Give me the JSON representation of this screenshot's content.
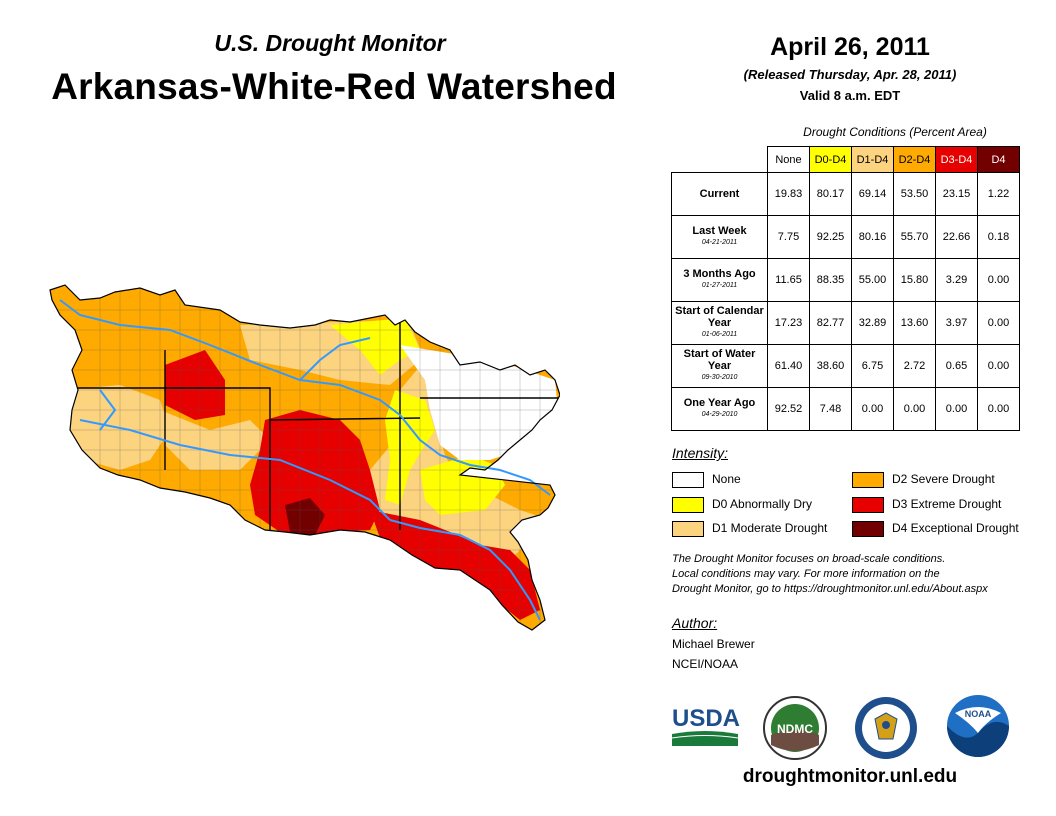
{
  "header": {
    "subtitle": "U.S. Drought Monitor",
    "title": "Arkansas-White-Red Watershed",
    "date": "April 26, 2011",
    "released": "(Released Thursday, Apr. 28, 2011)",
    "valid": "Valid 8 a.m. EDT"
  },
  "table": {
    "caption": "Drought Conditions (Percent Area)",
    "columns": [
      "None",
      "D0-D4",
      "D1-D4",
      "D2-D4",
      "D3-D4",
      "D4"
    ],
    "rows": [
      {
        "label": "Current",
        "sub_label": "",
        "values": [
          "19.83",
          "80.17",
          "69.14",
          "53.50",
          "23.15",
          "1.22"
        ]
      },
      {
        "label": "Last Week",
        "sub_label": "04-21-2011",
        "values": [
          "7.75",
          "92.25",
          "80.16",
          "55.70",
          "22.66",
          "0.18"
        ]
      },
      {
        "label": "3 Months Ago",
        "sub_label": "01-27-2011",
        "values": [
          "11.65",
          "88.35",
          "55.00",
          "15.80",
          "3.29",
          "0.00"
        ]
      },
      {
        "label": "Start of Calendar Year",
        "sub_label": "01-06-2011",
        "values": [
          "17.23",
          "82.77",
          "32.89",
          "13.60",
          "3.97",
          "0.00"
        ]
      },
      {
        "label": "Start of Water Year",
        "sub_label": "09-30-2010",
        "values": [
          "61.40",
          "38.60",
          "6.75",
          "2.72",
          "0.65",
          "0.00"
        ]
      },
      {
        "label": "One Year Ago",
        "sub_label": "04-29-2010",
        "values": [
          "92.52",
          "7.48",
          "0.00",
          "0.00",
          "0.00",
          "0.00"
        ]
      }
    ]
  },
  "legend": {
    "title": "Intensity:",
    "items": [
      {
        "label": "None",
        "color": "#ffffff"
      },
      {
        "label": "D0 Abnormally Dry",
        "color": "#ffff00"
      },
      {
        "label": "D1 Moderate Drought",
        "color": "#fcd37f"
      },
      {
        "label": "D2 Severe Drought",
        "color": "#ffaa00"
      },
      {
        "label": "D3 Extreme Drought",
        "color": "#e60000"
      },
      {
        "label": "D4 Exceptional Drought",
        "color": "#730000"
      }
    ]
  },
  "note": {
    "line1": "The Drought Monitor focuses on broad-scale conditions.",
    "line2": "Local conditions may vary. For more information on the",
    "line3": "Drought Monitor, go to https://droughtmonitor.unl.edu/About.aspx"
  },
  "author": {
    "title": "Author:",
    "name": "Michael Brewer",
    "org": "NCEI/NOAA"
  },
  "logos": {
    "usda": "USDA",
    "ndmc": "NDMC",
    "noaa": "NOAA"
  },
  "website": "droughtmonitor.unl.edu",
  "colors": {
    "d0": "#ffff00",
    "d1": "#fcd37f",
    "d2": "#ffaa00",
    "d3": "#e60000",
    "d4": "#730000",
    "river": "#3399ff"
  }
}
